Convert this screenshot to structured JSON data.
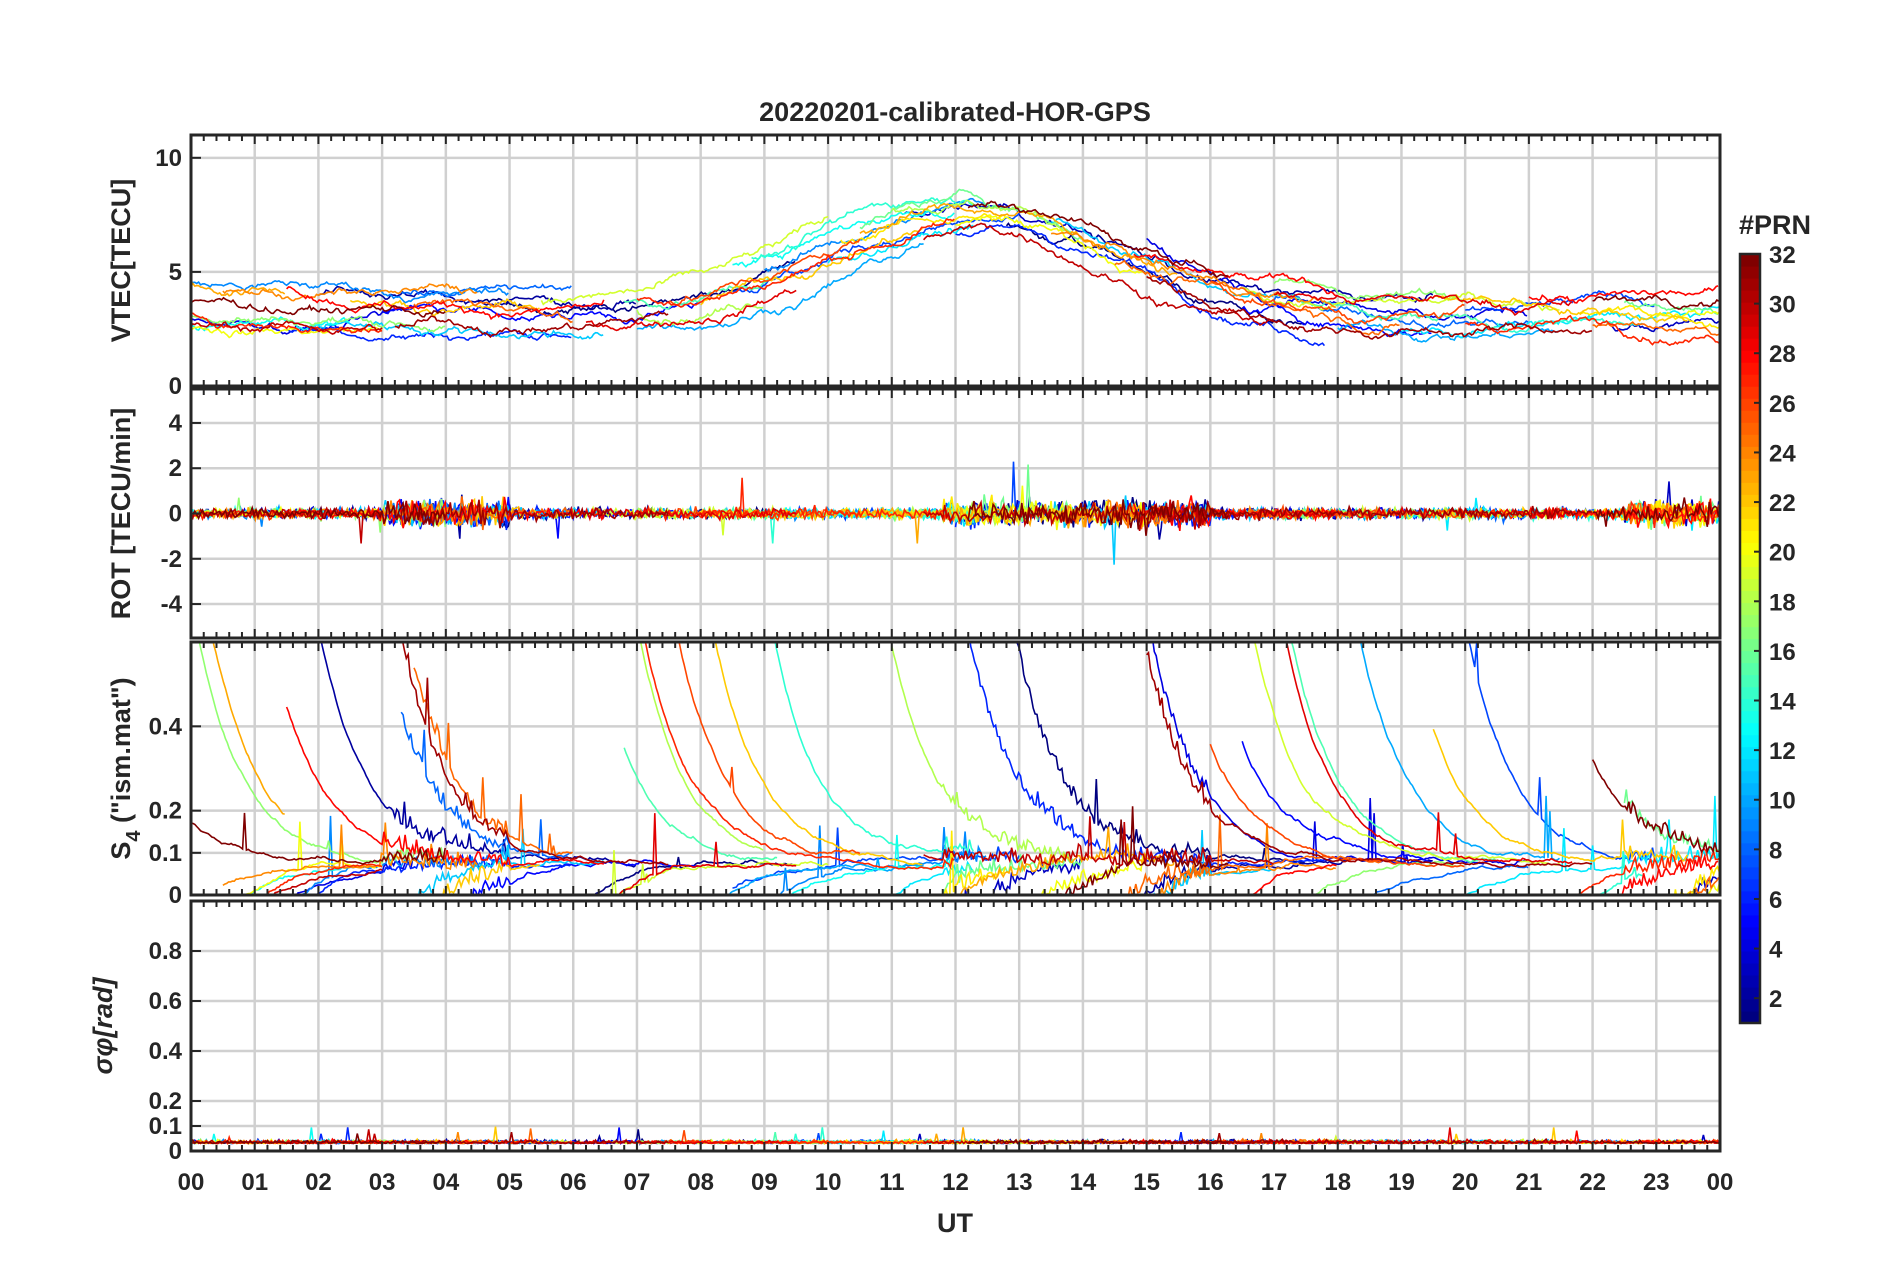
{
  "chart_data": {
    "type": "line",
    "title": "20220201-calibrated-HOR-GPS",
    "xlabel": "UT",
    "xlim": [
      0,
      24
    ],
    "xticks": [
      0,
      1,
      2,
      3,
      4,
      5,
      6,
      7,
      8,
      9,
      10,
      11,
      12,
      13,
      14,
      15,
      16,
      17,
      18,
      19,
      20,
      21,
      22,
      23,
      24
    ],
    "xtick_labels": [
      "00",
      "01",
      "02",
      "03",
      "04",
      "05",
      "06",
      "07",
      "08",
      "09",
      "10",
      "11",
      "12",
      "13",
      "14",
      "15",
      "16",
      "17",
      "18",
      "19",
      "20",
      "21",
      "22",
      "23",
      "00"
    ],
    "grid": true,
    "panels": [
      {
        "id": "vtec",
        "ylabel": "VTEC[TECU]",
        "ylim": [
          0,
          11
        ],
        "yticks": [
          0,
          5,
          10
        ],
        "ytick_labels": [
          "0",
          "5",
          "10"
        ]
      },
      {
        "id": "rot",
        "ylabel": "ROT [TECU/min]",
        "ylim": [
          -5.5,
          5.5
        ],
        "yticks": [
          -4,
          -2,
          0,
          2,
          4
        ],
        "ytick_labels": [
          "-4",
          "-2",
          "0",
          "2",
          "4"
        ]
      },
      {
        "id": "s4",
        "ylabel": "S4 (\"ism.mat\")",
        "ylabel_main": "S",
        "ylabel_sub": "4",
        "ylabel_rest": " (\"ism.mat\")",
        "ylim": [
          0,
          0.6
        ],
        "yticks": [
          0,
          0.1,
          0.2,
          0.4
        ],
        "ytick_labels": [
          "0",
          "0.1",
          "0.2",
          "0.4"
        ]
      },
      {
        "id": "sigphi",
        "ylabel": "σφ[rad]",
        "ylabel_main": "σ",
        "ylabel_sub": "φ",
        "ylabel_rest": "[rad]",
        "ylim": [
          0,
          1
        ],
        "yticks": [
          0,
          0.1,
          0.2,
          0.4,
          0.6,
          0.8
        ],
        "ytick_labels": [
          "0",
          "0.1",
          "0.2",
          "0.4",
          "0.6",
          "0.8"
        ]
      }
    ],
    "colorbar": {
      "label": "#PRN",
      "range": [
        1,
        32
      ],
      "colormap": "jet",
      "ticks": [
        2,
        4,
        6,
        8,
        10,
        12,
        14,
        16,
        18,
        20,
        22,
        24,
        26,
        28,
        30,
        32
      ]
    },
    "series_note": "one trace per GPS PRN, colored by PRN; values approximate",
    "series": [
      {
        "prn": 1,
        "passes": [
          [
            4.5,
            9.5
          ],
          [
            12.8,
            17.5
          ]
        ]
      },
      {
        "prn": 2,
        "passes": [
          [
            2.0,
            7.0
          ],
          [
            14.0,
            19.5
          ]
        ]
      },
      {
        "prn": 3,
        "passes": [
          [
            11.2,
            14.0
          ],
          [
            22.3,
            24
          ]
        ]
      },
      {
        "prn": 4,
        "passes": [
          [
            0,
            3.5
          ],
          [
            15.0,
            21.0
          ]
        ]
      },
      {
        "prn": 5,
        "passes": [
          [
            3.0,
            8.0
          ],
          [
            16.5,
            19.5
          ]
        ]
      },
      {
        "prn": 6,
        "passes": [
          [
            1.5,
            6.0
          ],
          [
            12.0,
            17.8
          ]
        ]
      },
      {
        "prn": 7,
        "passes": [
          [
            8.5,
            13.0
          ],
          [
            20.0,
            23.0
          ]
        ]
      },
      {
        "prn": 8,
        "passes": [
          [
            3.3,
            6.0
          ],
          [
            17.0,
            21.0
          ]
        ]
      },
      {
        "prn": 9,
        "passes": [
          [
            0,
            5.0
          ],
          [
            9.0,
            12.5
          ]
        ]
      },
      {
        "prn": 10,
        "passes": [
          [
            7.0,
            11.5
          ],
          [
            18.0,
            21.5
          ]
        ]
      },
      {
        "prn": 11,
        "passes": [
          [
            2.0,
            6.5
          ],
          [
            13.5,
            17.0
          ]
        ]
      },
      {
        "prn": 12,
        "passes": [
          [
            10.0,
            12.3
          ],
          [
            19.0,
            24
          ]
        ]
      },
      {
        "prn": 13,
        "passes": [
          [
            0,
            2.5
          ],
          [
            8.5,
            12.0
          ]
        ]
      },
      {
        "prn": 14,
        "passes": [
          [
            8.8,
            12.3
          ],
          [
            20.5,
            22.8
          ]
        ]
      },
      {
        "prn": 15,
        "passes": [
          [
            6.8,
            9.2
          ],
          [
            17.0,
            20.5
          ]
        ]
      },
      {
        "prn": 16,
        "passes": [
          [
            10.5,
            14.0
          ],
          [
            22.5,
            24
          ]
        ]
      },
      {
        "prn": 17,
        "passes": [
          [
            0,
            4.0
          ],
          [
            17.0,
            20.0
          ]
        ]
      },
      {
        "prn": 18,
        "passes": [
          [
            7.0,
            9.0
          ],
          [
            11.0,
            13.8
          ]
        ]
      },
      {
        "prn": 19,
        "passes": [
          [
            5.5,
            10.0
          ],
          [
            16.5,
            21.5
          ]
        ]
      },
      {
        "prn": 20,
        "passes": [
          [
            0,
            3.0
          ],
          [
            12.0,
            15.0
          ],
          [
            23.0,
            24
          ]
        ]
      },
      {
        "prn": 21,
        "passes": [
          [
            10.2,
            12.8
          ],
          [
            21.8,
            24
          ]
        ]
      },
      {
        "prn": 22,
        "passes": [
          [
            2.5,
            5.5
          ],
          [
            8.0,
            11.5
          ],
          [
            19.5,
            23.5
          ]
        ]
      },
      {
        "prn": 23,
        "passes": [
          [
            0,
            1.5
          ],
          [
            10.5,
            15.5
          ]
        ]
      },
      {
        "prn": 24,
        "passes": [
          [
            0.5,
            4.5
          ],
          [
            13.5,
            18.0
          ]
        ]
      },
      {
        "prn": 25,
        "passes": [
          [
            3.5,
            6.0
          ],
          [
            14.5,
            19.0
          ],
          [
            22.0,
            24
          ]
        ]
      },
      {
        "prn": 26,
        "passes": [
          [
            7.5,
            10.5
          ],
          [
            16.0,
            20.0
          ]
        ]
      },
      {
        "prn": 27,
        "passes": [
          [
            0,
            3.0
          ],
          [
            7.0,
            12.0
          ],
          [
            20.0,
            24
          ]
        ]
      },
      {
        "prn": 28,
        "passes": [
          [
            1.5,
            6.5
          ],
          [
            14.8,
            18.0
          ],
          [
            21.0,
            24
          ]
        ]
      },
      {
        "prn": 29,
        "passes": [
          [
            6.2,
            9.5
          ],
          [
            17.0,
            21.7
          ]
        ]
      },
      {
        "prn": 30,
        "passes": [
          [
            0,
            3.0
          ],
          [
            11.5,
            17.0
          ]
        ]
      },
      {
        "prn": 31,
        "passes": [
          [
            3.2,
            7.5
          ],
          [
            15.0,
            22.0
          ]
        ]
      },
      {
        "prn": 32,
        "passes": [
          [
            0,
            4.0
          ],
          [
            12.2,
            16.3
          ],
          [
            22.0,
            24
          ]
        ]
      }
    ]
  }
}
